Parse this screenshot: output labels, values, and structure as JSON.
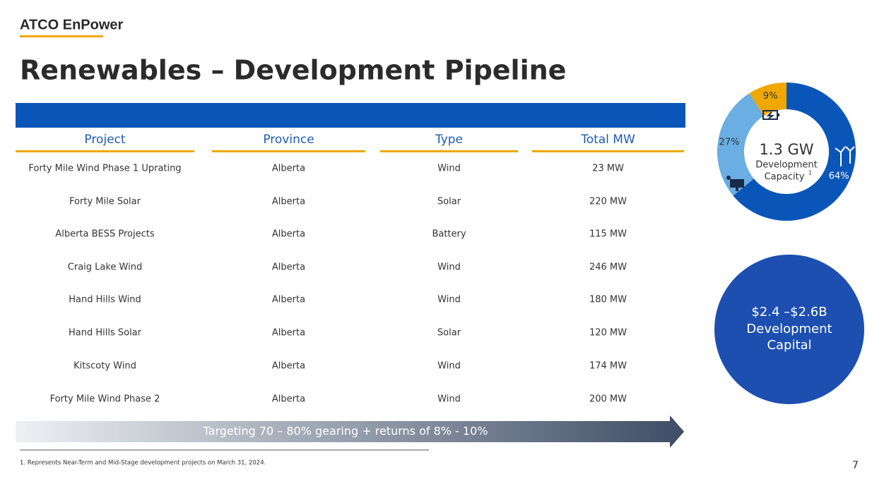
{
  "header": {
    "brand": "ATCO EnPower",
    "title": "Renewables – Development Pipeline"
  },
  "table": {
    "columns": [
      "Project",
      "Province",
      "Type",
      "Total MW"
    ],
    "rows": [
      [
        "Forty Mile Wind Phase 1 Uprating",
        "Alberta",
        "Wind",
        "23 MW"
      ],
      [
        "Forty Mile Solar",
        "Alberta",
        "Solar",
        "220 MW"
      ],
      [
        "Alberta BESS Projects",
        "Alberta",
        "Battery",
        "115 MW"
      ],
      [
        "Craig Lake Wind",
        "Alberta",
        "Wind",
        "246 MW"
      ],
      [
        "Hand Hills Wind",
        "Alberta",
        "Wind",
        "180 MW"
      ],
      [
        "Hand Hills Solar",
        "Alberta",
        "Solar",
        "120 MW"
      ],
      [
        "Kitscoty Wind",
        "Alberta",
        "Wind",
        "174 MW"
      ],
      [
        "Forty Mile Wind Phase 2",
        "Alberta",
        "Wind",
        "200 MW"
      ]
    ]
  },
  "banner": "Targeting 70 – 80% gearing + returns of 8% - 10%",
  "chart_data": {
    "type": "pie",
    "center_value": "1.3 GW",
    "center_label": [
      "Development",
      "Capacity"
    ],
    "center_note": "1",
    "values": [
      64,
      27,
      9
    ],
    "value_labels": [
      "64%",
      "27%",
      "9%"
    ],
    "colors": [
      "#0a56b8",
      "#6aaee3",
      "#f0a800"
    ]
  },
  "capital": [
    "$2.4 –$2.6B",
    "Development",
    "Capital"
  ],
  "footnote": "1. Represents Near-Term and Mid-Stage development projects on March 31, 2024.",
  "page_number": "7"
}
